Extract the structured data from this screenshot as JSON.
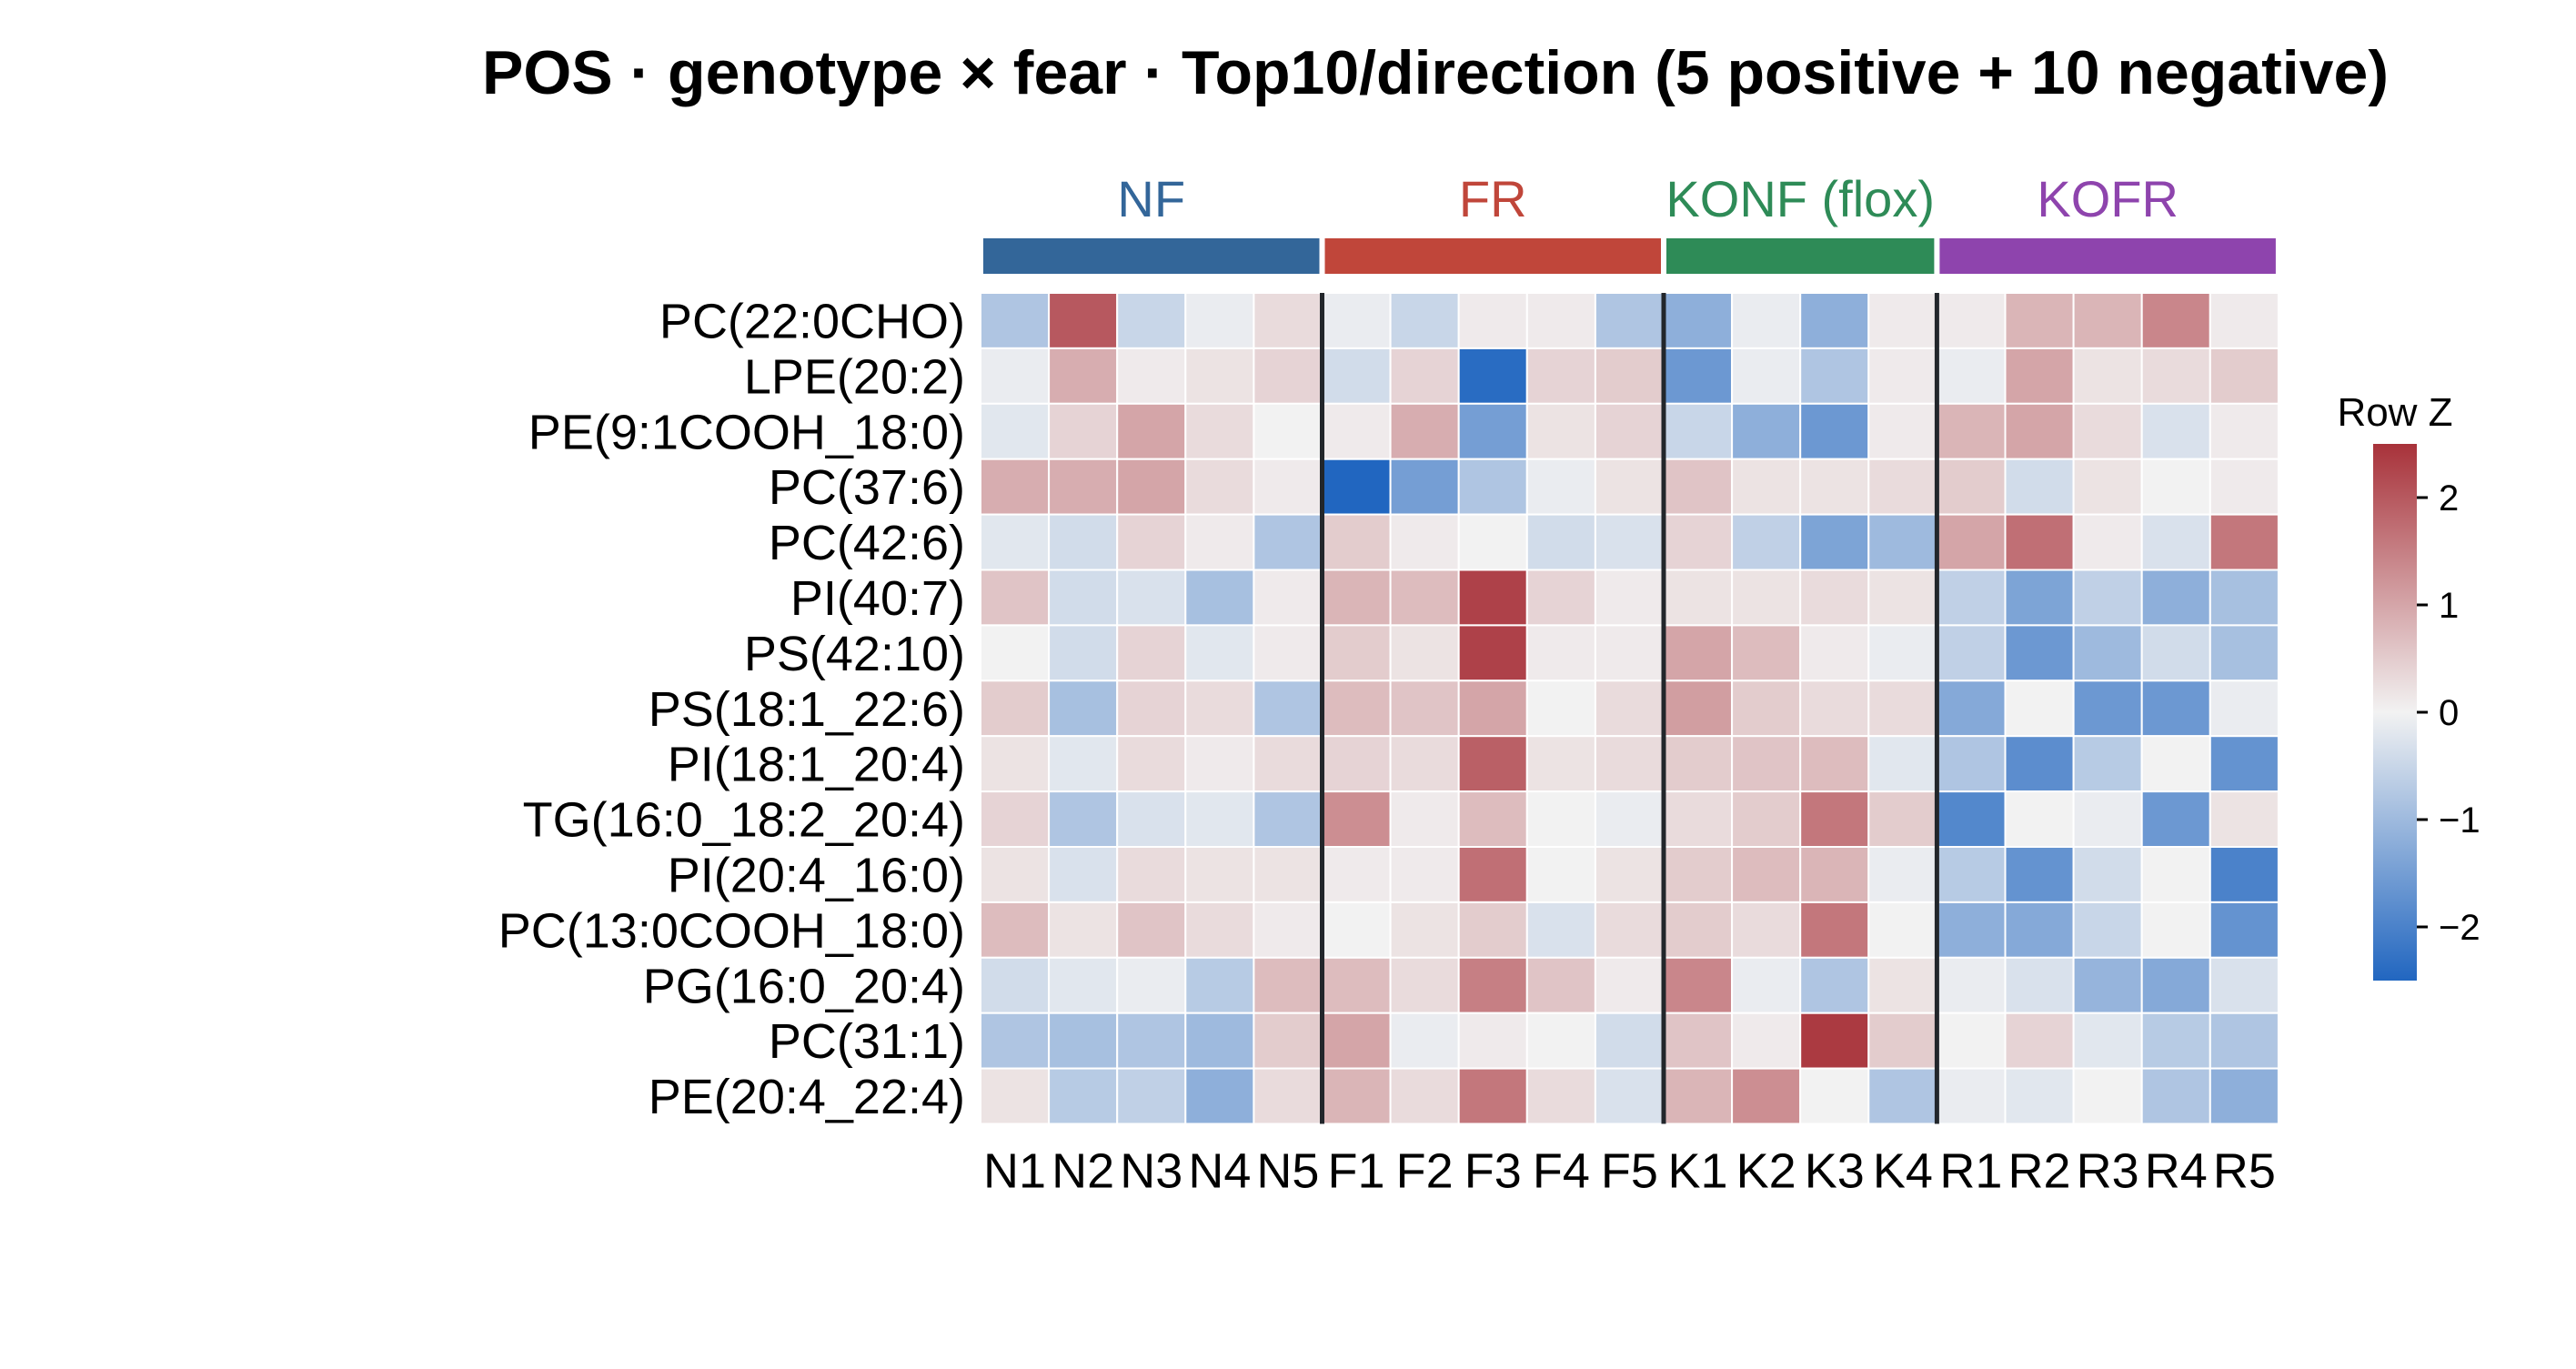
{
  "chart_data": {
    "type": "heatmap",
    "title": "POS · genotype × fear · Top10/direction (5 positive + 10 negative)",
    "groups": [
      {
        "name": "NF",
        "color": "#336699",
        "columns": [
          "N1",
          "N2",
          "N3",
          "N4",
          "N5"
        ]
      },
      {
        "name": "FR",
        "color": "#C0463A",
        "columns": [
          "F1",
          "F2",
          "F3",
          "F4",
          "F5"
        ]
      },
      {
        "name": "KONF (flox)",
        "color": "#2E8B57",
        "columns": [
          "K1",
          "K2",
          "K3",
          "K4"
        ]
      },
      {
        "name": "KOFR",
        "color": "#8E44AD",
        "columns": [
          "R1",
          "R2",
          "R3",
          "R4",
          "R5"
        ]
      }
    ],
    "columns": [
      "N1",
      "N2",
      "N3",
      "N4",
      "N5",
      "F1",
      "F2",
      "F3",
      "F4",
      "F5",
      "K1",
      "K2",
      "K3",
      "K4",
      "R1",
      "R2",
      "R3",
      "R4",
      "R5"
    ],
    "rows": [
      "PC(22:0CHO)",
      "LPE(20:2)",
      "PE(9:1COOH_18:0)",
      "PC(37:6)",
      "PC(42:6)",
      "PI(40:7)",
      "PS(42:10)",
      "PS(18:1_22:6)",
      "PI(18:1_20:4)",
      "TG(16:0_18:2_20:4)",
      "PI(20:4_16:0)",
      "PC(13:0COOH_18:0)",
      "PG(16:0_20:4)",
      "PC(31:1)",
      "PE(20:4_22:4)"
    ],
    "values": [
      [
        -0.8,
        2.0,
        -0.5,
        -0.1,
        0.3,
        -0.1,
        -0.5,
        0.1,
        0.1,
        -0.8,
        -1.2,
        -0.1,
        -1.2,
        0.1,
        0.1,
        0.8,
        0.8,
        1.4,
        0.1
      ],
      [
        -0.1,
        0.9,
        0.1,
        0.2,
        0.4,
        -0.4,
        0.4,
        -2.4,
        0.4,
        0.5,
        -1.6,
        -0.1,
        -0.8,
        0.1,
        -0.1,
        1.0,
        0.2,
        0.3,
        0.5
      ],
      [
        -0.2,
        0.4,
        1.0,
        0.3,
        0.0,
        0.1,
        0.9,
        -1.5,
        0.2,
        0.4,
        -0.5,
        -1.2,
        -1.6,
        0.1,
        0.8,
        1.0,
        0.3,
        -0.3,
        0.1
      ],
      [
        0.9,
        0.9,
        1.0,
        0.3,
        0.1,
        -2.5,
        -1.5,
        -0.8,
        -0.1,
        0.2,
        0.6,
        0.2,
        0.2,
        0.3,
        0.5,
        -0.4,
        0.2,
        0.0,
        0.1
      ],
      [
        -0.2,
        -0.4,
        0.4,
        0.1,
        -0.8,
        0.5,
        0.1,
        0.0,
        -0.4,
        -0.3,
        0.4,
        -0.6,
        -1.4,
        -1.0,
        1.0,
        1.7,
        0.1,
        -0.3,
        1.6
      ],
      [
        0.6,
        -0.4,
        -0.3,
        -0.9,
        0.1,
        0.8,
        0.7,
        2.3,
        0.4,
        0.1,
        0.2,
        0.2,
        0.3,
        0.2,
        -0.6,
        -1.4,
        -0.6,
        -1.2,
        -0.9
      ],
      [
        0.0,
        -0.4,
        0.4,
        -0.2,
        0.1,
        0.5,
        0.2,
        2.3,
        0.1,
        0.1,
        1.0,
        0.7,
        0.1,
        -0.1,
        -0.6,
        -1.6,
        -1.0,
        -0.4,
        -0.9
      ],
      [
        0.5,
        -0.9,
        0.4,
        0.3,
        -0.8,
        0.7,
        0.6,
        1.0,
        0.0,
        0.3,
        1.1,
        0.5,
        0.3,
        0.3,
        -1.3,
        0.0,
        -1.6,
        -1.6,
        -0.1
      ],
      [
        0.2,
        -0.2,
        0.3,
        0.1,
        0.3,
        0.4,
        0.3,
        1.9,
        0.2,
        0.3,
        0.5,
        0.6,
        0.7,
        -0.2,
        -0.8,
        -1.8,
        -0.7,
        0.0,
        -1.7
      ],
      [
        0.4,
        -0.8,
        -0.3,
        -0.2,
        -0.8,
        1.3,
        0.1,
        0.7,
        0.0,
        -0.1,
        0.3,
        0.5,
        1.6,
        0.5,
        -1.9,
        0.0,
        -0.1,
        -1.6,
        0.2
      ],
      [
        0.2,
        -0.3,
        0.3,
        0.2,
        0.2,
        0.1,
        0.1,
        1.7,
        0.0,
        0.2,
        0.5,
        0.7,
        0.8,
        -0.1,
        -0.7,
        -1.7,
        -0.4,
        0.0,
        -2.0
      ],
      [
        0.7,
        0.2,
        0.6,
        0.3,
        0.1,
        0.0,
        0.2,
        0.5,
        -0.3,
        0.3,
        0.5,
        0.3,
        1.6,
        0.0,
        -1.2,
        -1.3,
        -0.5,
        0.0,
        -1.7
      ],
      [
        -0.4,
        -0.2,
        -0.1,
        -0.7,
        0.7,
        0.7,
        0.3,
        1.5,
        0.6,
        0.1,
        1.4,
        -0.1,
        -0.8,
        0.2,
        -0.1,
        -0.3,
        -1.1,
        -1.3,
        -0.3
      ],
      [
        -0.8,
        -0.9,
        -0.8,
        -1.0,
        0.5,
        1.0,
        -0.1,
        0.1,
        0.0,
        -0.4,
        0.6,
        0.1,
        2.4,
        0.5,
        0.0,
        0.4,
        -0.2,
        -0.7,
        -0.8
      ],
      [
        0.2,
        -0.7,
        -0.6,
        -1.2,
        0.3,
        0.8,
        0.3,
        1.6,
        0.3,
        -0.3,
        0.8,
        1.3,
        0.0,
        -0.8,
        -0.1,
        -0.2,
        0.0,
        -0.8,
        -1.2
      ]
    ],
    "colorbar": {
      "title": "Row Z",
      "ticks": [
        2,
        1,
        0,
        -1,
        -2
      ],
      "tick_labels": [
        "2",
        "1",
        "0",
        "−1",
        "−2"
      ],
      "range": [
        -2.5,
        2.5
      ],
      "color_low": "#2166C0",
      "color_mid": "#F2F2F2",
      "color_high": "#A8323A"
    },
    "grid": true
  }
}
